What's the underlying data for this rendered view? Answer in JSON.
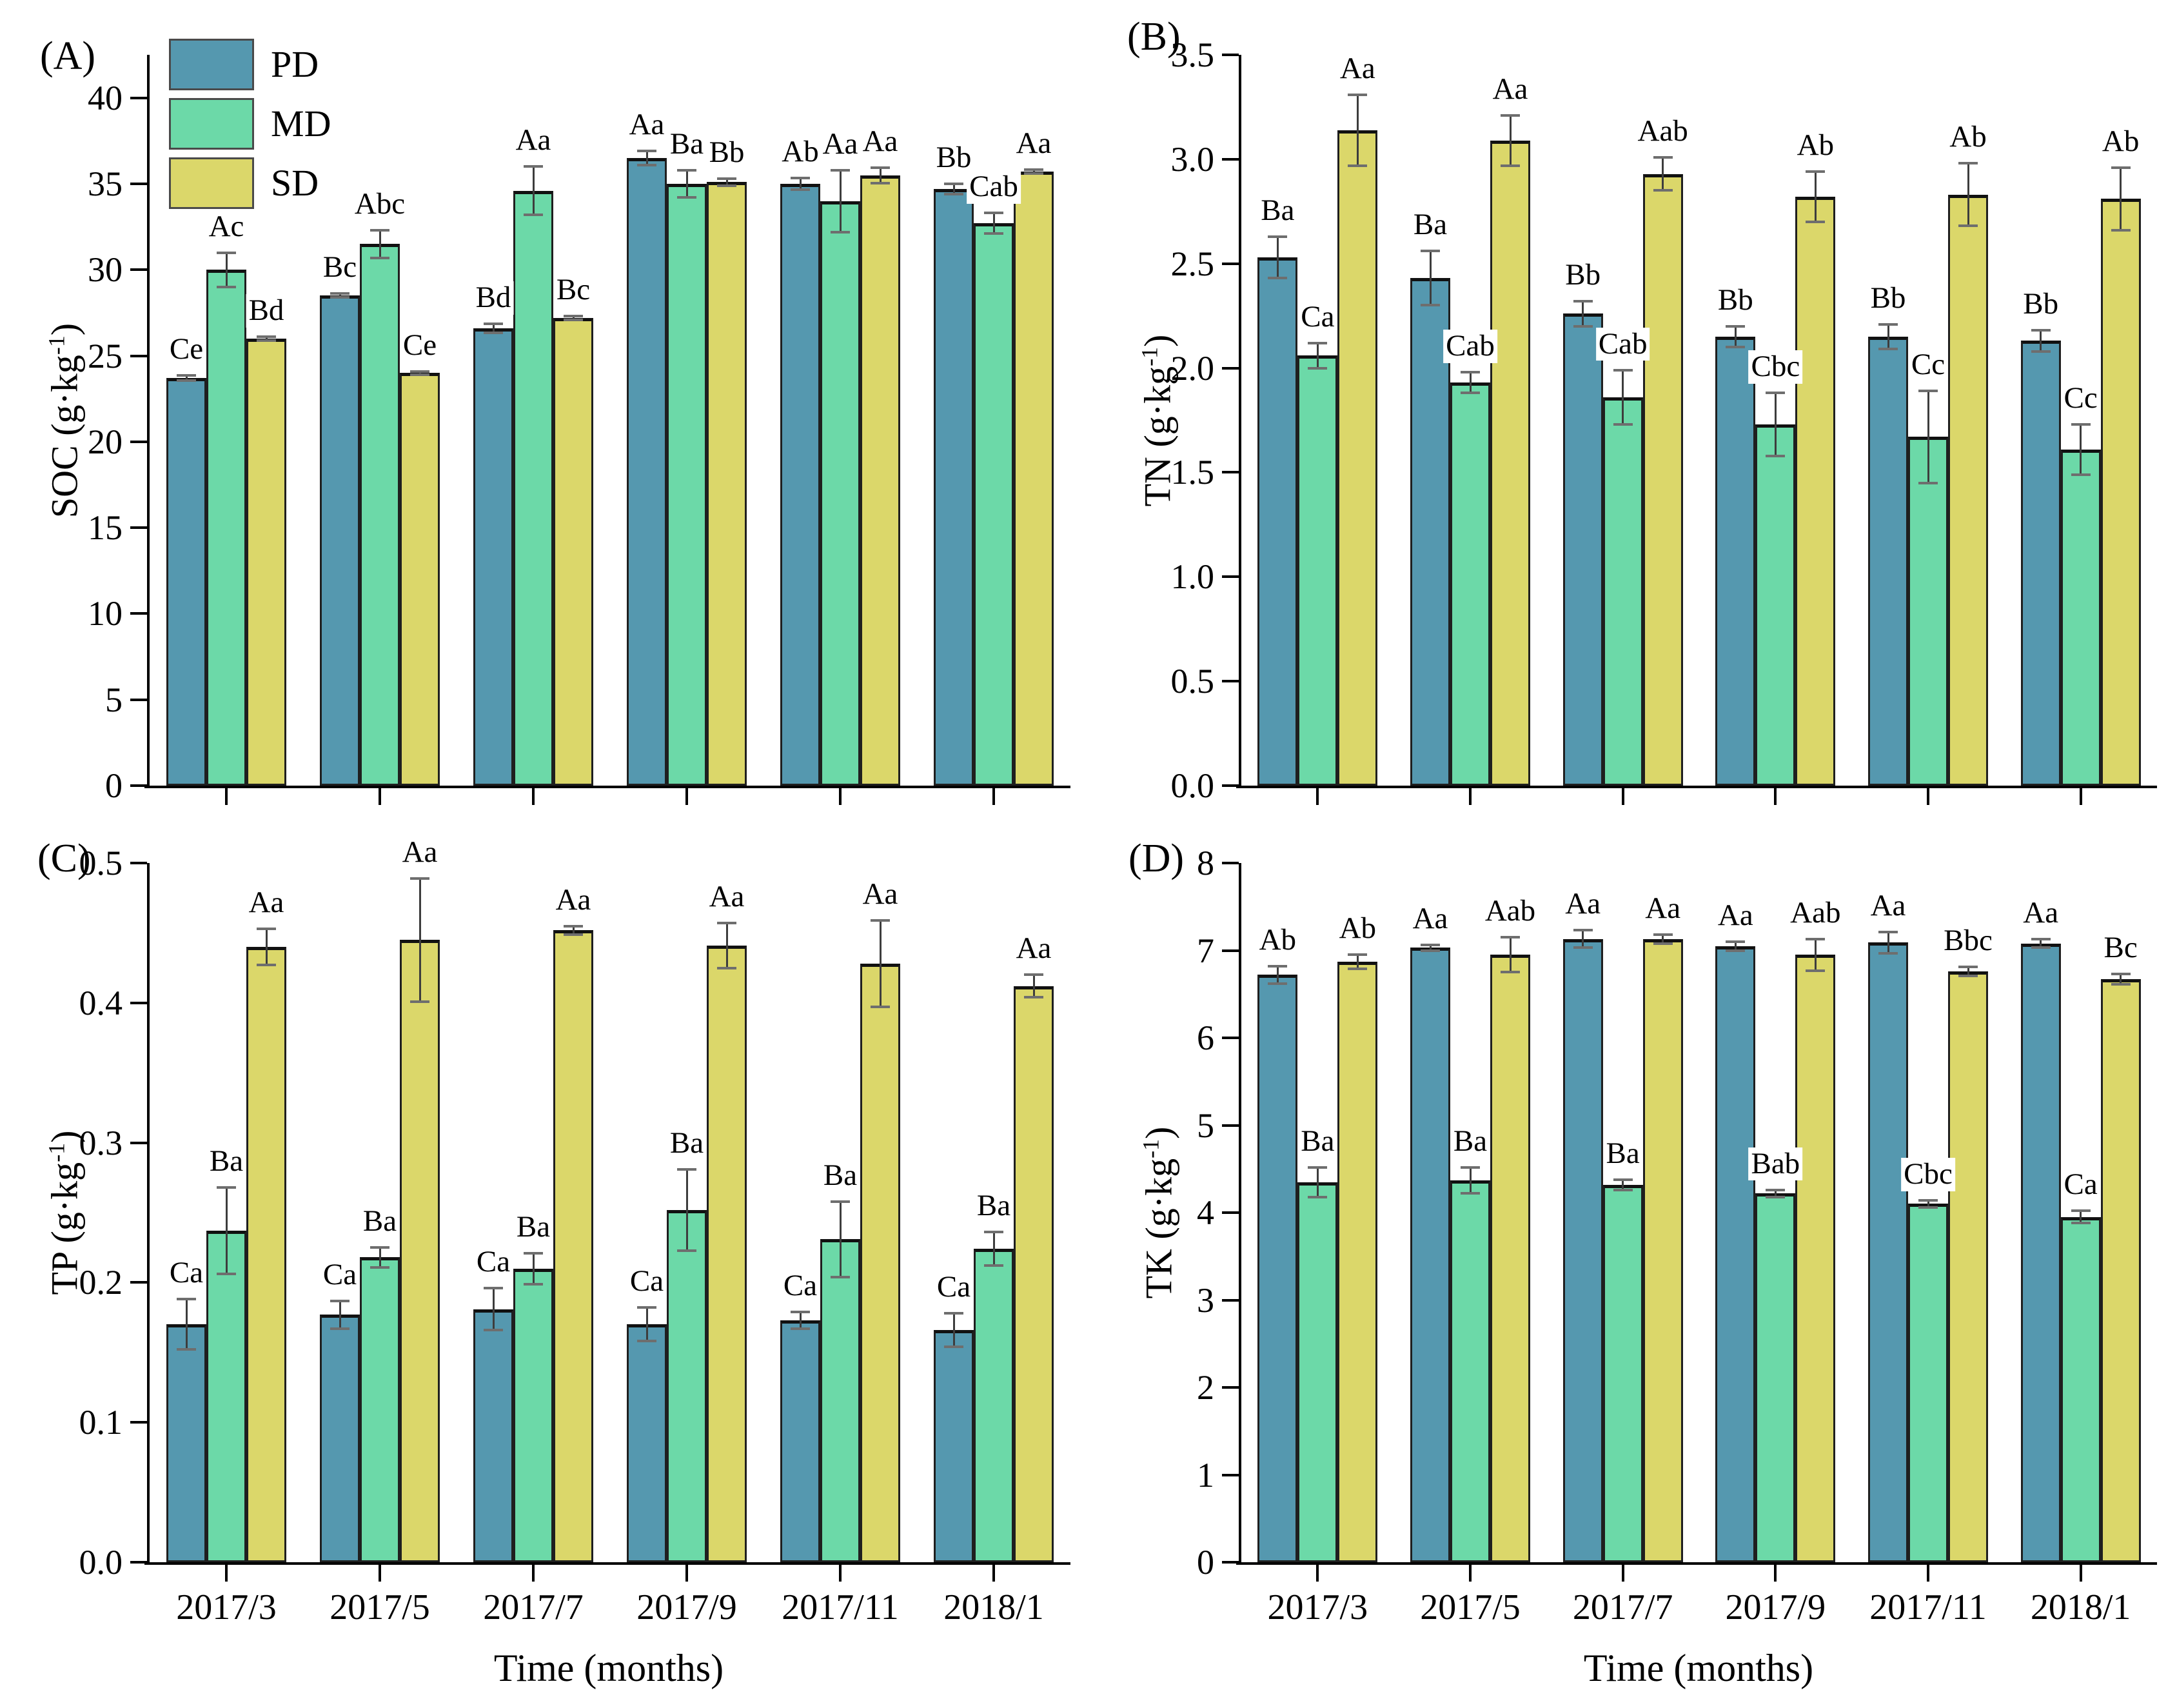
{
  "figure": {
    "x_axis_label": "Time (months)",
    "categories": [
      "2017/3",
      "2017/5",
      "2017/7",
      "2017/9",
      "2017/11",
      "2018/1"
    ],
    "legend": [
      {
        "key": "PD",
        "label": "PD",
        "color": "#5598AF"
      },
      {
        "key": "MD",
        "label": "MD",
        "color": "#6CD9A8"
      },
      {
        "key": "SD",
        "label": "SD",
        "color": "#DBD76A"
      }
    ],
    "colors": {
      "bar_border": "#1f1f1f",
      "error_bar": "#3d3d3d",
      "axis": "#000000",
      "background": "#ffffff"
    }
  },
  "chart_data": [
    {
      "type": "bar",
      "panel": "A",
      "title_letter": "(A)",
      "ylabel_base": "SOC (g·kg",
      "ylabel_sup": "-1",
      "ylabel_close": ")",
      "ylim": [
        0,
        42.5
      ],
      "grid": false,
      "legend_position": "upper-left",
      "show_x_labels": false,
      "yticks": [
        {
          "v": 0,
          "label": "0"
        },
        {
          "v": 5,
          "label": "5"
        },
        {
          "v": 10,
          "label": "10"
        },
        {
          "v": 15,
          "label": "15"
        },
        {
          "v": 20,
          "label": "20"
        },
        {
          "v": 25,
          "label": "25"
        },
        {
          "v": 30,
          "label": "30"
        },
        {
          "v": 35,
          "label": "35"
        },
        {
          "v": 40,
          "label": "40"
        }
      ],
      "categories": [
        "2017/3",
        "2017/5",
        "2017/7",
        "2017/9",
        "2017/11",
        "2018/1"
      ],
      "series": [
        {
          "name": "PD",
          "values": [
            23.7,
            28.5,
            26.6,
            36.5,
            35.0,
            34.7
          ],
          "errors": [
            0.15,
            0.12,
            0.25,
            0.4,
            0.35,
            0.3
          ],
          "letters": [
            "Ce",
            "Bc",
            "Bd",
            "Aa",
            "Ab",
            "Bb"
          ]
        },
        {
          "name": "MD",
          "values": [
            30.0,
            31.5,
            34.6,
            35.0,
            34.0,
            32.7
          ],
          "errors": [
            1.0,
            0.8,
            1.4,
            0.8,
            1.8,
            0.6
          ],
          "letters": [
            "Ac",
            "Abc",
            "Aa",
            "Ba",
            "Aa",
            "Cab"
          ]
        },
        {
          "name": "SD",
          "values": [
            26.0,
            24.0,
            27.2,
            35.1,
            35.5,
            35.7
          ],
          "errors": [
            0.1,
            0.1,
            0.12,
            0.2,
            0.45,
            0.12
          ],
          "letters": [
            "Bd",
            "Ce",
            "Bc",
            "Bb",
            "Aa",
            "Aa"
          ]
        }
      ]
    },
    {
      "type": "bar",
      "panel": "B",
      "title_letter": "(B)",
      "ylabel_base": "TN (g·kg",
      "ylabel_sup": "-1",
      "ylabel_close": ")",
      "ylim": [
        0,
        3.5
      ],
      "grid": false,
      "show_x_labels": false,
      "yticks": [
        {
          "v": 0,
          "label": "0.0"
        },
        {
          "v": 0.5,
          "label": "0.5"
        },
        {
          "v": 1.0,
          "label": "1.0"
        },
        {
          "v": 1.5,
          "label": "1.5"
        },
        {
          "v": 2.0,
          "label": "2.0"
        },
        {
          "v": 2.5,
          "label": "2.5"
        },
        {
          "v": 3.0,
          "label": "3.0"
        },
        {
          "v": 3.5,
          "label": "3.5"
        }
      ],
      "categories": [
        "2017/3",
        "2017/5",
        "2017/7",
        "2017/9",
        "2017/11",
        "2018/1"
      ],
      "series": [
        {
          "name": "PD",
          "values": [
            2.53,
            2.43,
            2.26,
            2.15,
            2.15,
            2.13
          ],
          "errors": [
            0.1,
            0.13,
            0.06,
            0.05,
            0.06,
            0.05
          ],
          "letters": [
            "Ba",
            "Ba",
            "Bb",
            "Bb",
            "Bb",
            "Bb"
          ]
        },
        {
          "name": "MD",
          "values": [
            2.06,
            1.93,
            1.86,
            1.73,
            1.67,
            1.61
          ],
          "errors": [
            0.06,
            0.05,
            0.13,
            0.15,
            0.22,
            0.12
          ],
          "letters": [
            "Ca",
            "Cab",
            "Cab",
            "Cbc",
            "Cc",
            "Cc"
          ]
        },
        {
          "name": "SD",
          "values": [
            3.14,
            3.09,
            2.93,
            2.82,
            2.83,
            2.81
          ],
          "errors": [
            0.17,
            0.12,
            0.08,
            0.12,
            0.15,
            0.15
          ],
          "letters": [
            "Aa",
            "Aa",
            "Aab",
            "Ab",
            "Ab",
            "Ab"
          ]
        }
      ]
    },
    {
      "type": "bar",
      "panel": "C",
      "title_letter": "(C)",
      "ylabel_base": "TP (g·kg",
      "ylabel_sup": "-1",
      "ylabel_close": ")",
      "ylim": [
        0,
        0.5
      ],
      "grid": false,
      "show_x_labels": true,
      "yticks": [
        {
          "v": 0,
          "label": "0.0"
        },
        {
          "v": 0.1,
          "label": "0.1"
        },
        {
          "v": 0.2,
          "label": "0.2"
        },
        {
          "v": 0.3,
          "label": "0.3"
        },
        {
          "v": 0.4,
          "label": "0.4"
        },
        {
          "v": 0.5,
          "label": "0.5"
        }
      ],
      "categories": [
        "2017/3",
        "2017/5",
        "2017/7",
        "2017/9",
        "2017/11",
        "2018/1"
      ],
      "series": [
        {
          "name": "PD",
          "values": [
            0.17,
            0.177,
            0.181,
            0.17,
            0.173,
            0.166
          ],
          "errors": [
            0.018,
            0.01,
            0.015,
            0.012,
            0.006,
            0.012
          ],
          "letters": [
            "Ca",
            "Ca",
            "Ca",
            "Ca",
            "Ca",
            "Ca"
          ]
        },
        {
          "name": "MD",
          "values": [
            0.237,
            0.218,
            0.21,
            0.252,
            0.231,
            0.224
          ],
          "errors": [
            0.031,
            0.007,
            0.011,
            0.029,
            0.027,
            0.012
          ],
          "letters": [
            "Ba",
            "Ba",
            "Ba",
            "Ba",
            "Ba",
            "Ba"
          ]
        },
        {
          "name": "SD",
          "values": [
            0.44,
            0.445,
            0.452,
            0.441,
            0.428,
            0.412
          ],
          "errors": [
            0.013,
            0.044,
            0.003,
            0.016,
            0.031,
            0.008
          ],
          "letters": [
            "Aa",
            "Aa",
            "Aa",
            "Aa",
            "Aa",
            "Aa"
          ]
        }
      ]
    },
    {
      "type": "bar",
      "panel": "D",
      "title_letter": "(D)",
      "ylabel_base": "TK (g·kg",
      "ylabel_sup": "-1",
      "ylabel_close": ")",
      "ylim": [
        0,
        8
      ],
      "grid": false,
      "show_x_labels": true,
      "yticks": [
        {
          "v": 0,
          "label": "0"
        },
        {
          "v": 1,
          "label": "1"
        },
        {
          "v": 2,
          "label": "2"
        },
        {
          "v": 3,
          "label": "3"
        },
        {
          "v": 4,
          "label": "4"
        },
        {
          "v": 5,
          "label": "5"
        },
        {
          "v": 6,
          "label": "6"
        },
        {
          "v": 7,
          "label": "7"
        },
        {
          "v": 8,
          "label": "8"
        }
      ],
      "categories": [
        "2017/3",
        "2017/5",
        "2017/7",
        "2017/9",
        "2017/11",
        "2018/1"
      ],
      "series": [
        {
          "name": "PD",
          "values": [
            6.72,
            7.03,
            7.13,
            7.05,
            7.09,
            7.08
          ],
          "errors": [
            0.1,
            0.03,
            0.1,
            0.05,
            0.12,
            0.05
          ],
          "letters": [
            "Ab",
            "Aa",
            "Aa",
            "Aa",
            "Aa",
            "Aa"
          ]
        },
        {
          "name": "MD",
          "values": [
            4.35,
            4.37,
            4.32,
            4.22,
            4.1,
            3.95
          ],
          "errors": [
            0.17,
            0.15,
            0.06,
            0.04,
            0.04,
            0.07
          ],
          "letters": [
            "Ba",
            "Ba",
            "Ba",
            "Bab",
            "Cbc",
            "Ca"
          ]
        },
        {
          "name": "SD",
          "values": [
            6.87,
            6.95,
            7.13,
            6.95,
            6.76,
            6.67
          ],
          "errors": [
            0.08,
            0.2,
            0.05,
            0.18,
            0.05,
            0.06
          ],
          "letters": [
            "Ab",
            "Aab",
            "Aa",
            "Aab",
            "Bbc",
            "Bc"
          ]
        }
      ]
    }
  ]
}
